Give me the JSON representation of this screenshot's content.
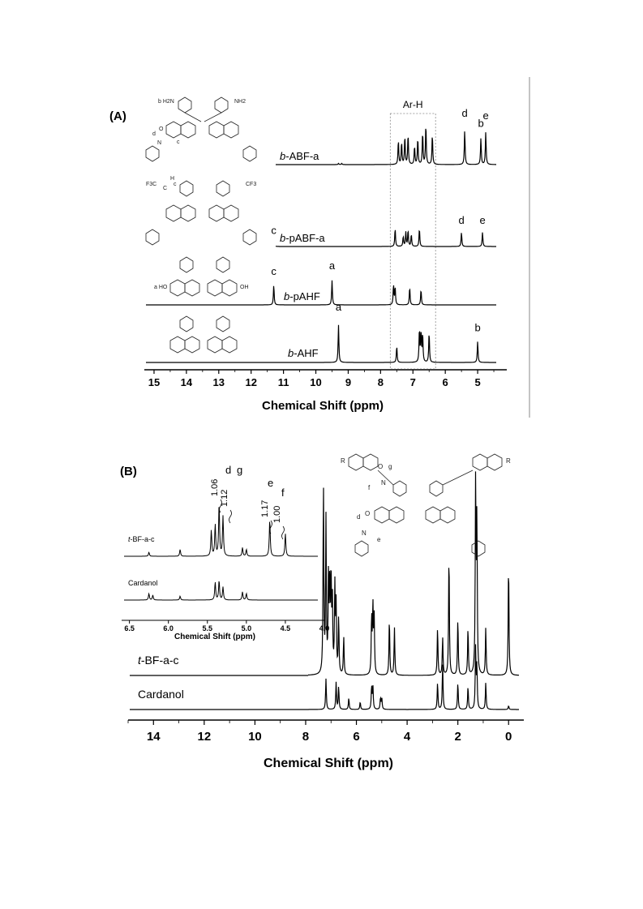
{
  "chart_data": [
    {
      "type": "line",
      "panel_label": "(A)",
      "xlabel": "Chemical Shift (ppm)",
      "x_ticks": [
        "15",
        "14",
        "13",
        "12",
        "11",
        "10",
        "9",
        "8",
        "7",
        "6",
        "5"
      ],
      "xlim": [
        15.3,
        4.1
      ],
      "region_label": "Ar-H",
      "region_range": [
        7.7,
        6.3
      ],
      "series": [
        {
          "name": "b-ABF-a",
          "name_prefix": "b",
          "name_suffix": "-ABF-a",
          "peaks": [
            [
              9.3,
              0.03
            ],
            [
              9.2,
              0.03
            ],
            [
              7.45,
              0.6
            ],
            [
              7.35,
              0.55
            ],
            [
              7.25,
              0.7
            ],
            [
              7.15,
              0.75
            ],
            [
              6.95,
              0.45
            ],
            [
              6.85,
              0.65
            ],
            [
              6.7,
              0.8
            ],
            [
              6.6,
              1.0
            ],
            [
              6.4,
              0.75
            ],
            [
              5.4,
              0.85
            ],
            [
              4.9,
              0.65
            ],
            [
              4.75,
              0.8
            ]
          ],
          "peak_labels": [
            {
              "x": 5.4,
              "text": "d"
            },
            {
              "x": 4.9,
              "text": "b"
            },
            {
              "x": 4.75,
              "text": "e"
            }
          ]
        },
        {
          "name": "b-pABF-a",
          "name_prefix": "b",
          "name_suffix": "-pABF-a",
          "peaks": [
            [
              11.3,
              0.15
            ],
            [
              7.55,
              0.45
            ],
            [
              7.3,
              0.25
            ],
            [
              7.22,
              0.35
            ],
            [
              7.15,
              0.4
            ],
            [
              7.05,
              0.3
            ],
            [
              6.8,
              0.45
            ],
            [
              5.5,
              0.35
            ],
            [
              4.85,
              0.35
            ]
          ],
          "peak_labels": [
            {
              "x": 11.3,
              "text": "c"
            },
            {
              "x": 5.5,
              "text": "d"
            },
            {
              "x": 4.85,
              "text": "e"
            }
          ]
        },
        {
          "name": "b-pAHF",
          "name_prefix": "b",
          "name_suffix": "-pAHF",
          "peaks": [
            [
              11.3,
              0.45
            ],
            [
              9.5,
              0.55
            ],
            [
              7.6,
              0.45
            ],
            [
              7.55,
              0.4
            ],
            [
              7.1,
              0.4
            ],
            [
              6.75,
              0.35
            ]
          ],
          "peak_labels": [
            {
              "x": 11.3,
              "text": "c"
            },
            {
              "x": 9.5,
              "text": "a"
            }
          ]
        },
        {
          "name": "b-AHF",
          "name_prefix": "b",
          "name_suffix": "-AHF",
          "peaks": [
            [
              9.3,
              0.8
            ],
            [
              7.5,
              0.35
            ],
            [
              6.8,
              0.7
            ],
            [
              6.75,
              0.65
            ],
            [
              6.7,
              0.6
            ],
            [
              6.5,
              0.65
            ],
            [
              5.0,
              0.45
            ]
          ],
          "peak_labels": [
            {
              "x": 9.3,
              "text": "a"
            },
            {
              "x": 5.0,
              "text": "b"
            }
          ]
        }
      ],
      "structure_labels": [
        {
          "text": "b H2N"
        },
        {
          "text": "NH2"
        },
        {
          "text": "O"
        },
        {
          "text": "d"
        },
        {
          "text": "N"
        },
        {
          "text": "c"
        },
        {
          "text": "F3C"
        },
        {
          "text": "C"
        },
        {
          "text": "H"
        },
        {
          "text": "c"
        },
        {
          "text": "CF3"
        },
        {
          "text": "a HO"
        },
        {
          "text": "OH"
        }
      ]
    },
    {
      "type": "line",
      "panel_label": "(B)",
      "xlabel": "Chemical Shift (ppm)",
      "x_ticks": [
        "14",
        "12",
        "10",
        "8",
        "6",
        "4",
        "2",
        "0"
      ],
      "xlim": [
        15.0,
        -0.6
      ],
      "series": [
        {
          "name": "t-BF-a-c",
          "name_prefix": "t",
          "name_suffix": "-BF-a-c",
          "peaks": [
            [
              7.3,
              1.0
            ],
            [
              7.2,
              0.8
            ],
            [
              7.1,
              0.5
            ],
            [
              7.05,
              0.45
            ],
            [
              7.0,
              0.5
            ],
            [
              6.95,
              0.4
            ],
            [
              6.85,
              0.45
            ],
            [
              6.8,
              0.35
            ],
            [
              6.7,
              0.3
            ],
            [
              6.5,
              0.2
            ],
            [
              5.4,
              0.3
            ],
            [
              5.35,
              0.35
            ],
            [
              5.3,
              0.3
            ],
            [
              4.7,
              0.3
            ],
            [
              4.5,
              0.25
            ],
            [
              2.8,
              0.25
            ],
            [
              2.6,
              0.2
            ],
            [
              2.35,
              0.65
            ],
            [
              2.0,
              0.3
            ],
            [
              1.6,
              0.25
            ],
            [
              1.3,
              1.0
            ],
            [
              1.25,
              0.8
            ],
            [
              0.9,
              0.25
            ],
            [
              0.0,
              0.6
            ]
          ]
        },
        {
          "name": "Cardanol",
          "name_prefix": "",
          "name_suffix": "Cardanol",
          "peaks": [
            [
              7.2,
              0.4
            ],
            [
              6.8,
              0.35
            ],
            [
              6.7,
              0.3
            ],
            [
              6.3,
              0.15
            ],
            [
              5.85,
              0.1
            ],
            [
              5.4,
              0.3
            ],
            [
              5.35,
              0.3
            ],
            [
              5.05,
              0.15
            ],
            [
              5.0,
              0.15
            ],
            [
              2.8,
              0.35
            ],
            [
              2.6,
              0.6
            ],
            [
              2.0,
              0.35
            ],
            [
              1.6,
              0.3
            ],
            [
              1.3,
              0.8
            ],
            [
              1.25,
              0.55
            ],
            [
              0.9,
              0.35
            ],
            [
              0.0,
              0.05
            ]
          ]
        }
      ],
      "inset": {
        "xlabel": "Chemical Shift (ppm)",
        "x_ticks": [
          "6.5",
          "6.0",
          "5.5",
          "5.0",
          "4.5",
          "4.0"
        ],
        "xlim": [
          6.6,
          4.0
        ],
        "series": [
          {
            "name": "t-BF-a-c",
            "name_prefix": "t",
            "name_suffix": "-BF-a-c",
            "peaks": [
              [
                6.25,
                0.07
              ],
              [
                5.85,
                0.12
              ],
              [
                5.45,
                0.45
              ],
              [
                5.4,
                0.55
              ],
              [
                5.35,
                0.9
              ],
              [
                5.3,
                0.7
              ],
              [
                5.05,
                0.15
              ],
              [
                5.0,
                0.12
              ],
              [
                4.7,
                0.65
              ],
              [
                4.5,
                0.4
              ]
            ]
          },
          {
            "name": "Cardanol",
            "name_prefix": "",
            "name_suffix": "Cardanol",
            "peaks": [
              [
                6.25,
                0.2
              ],
              [
                6.2,
                0.15
              ],
              [
                5.85,
                0.12
              ],
              [
                5.4,
                0.55
              ],
              [
                5.35,
                0.6
              ],
              [
                5.3,
                0.4
              ],
              [
                5.05,
                0.25
              ],
              [
                5.0,
                0.2
              ]
            ]
          }
        ],
        "integrals": [
          {
            "value": "1.06",
            "letter": "d"
          },
          {
            "value": "1.12",
            "letter": "g"
          },
          {
            "value": "1.17",
            "letter": "e"
          },
          {
            "value": "1.00",
            "letter": "f"
          }
        ]
      },
      "structure_labels": [
        {
          "text": "R"
        },
        {
          "text": "O"
        },
        {
          "text": "g"
        },
        {
          "text": "N"
        },
        {
          "text": "f"
        },
        {
          "text": "R"
        },
        {
          "text": "d"
        },
        {
          "text": "O"
        },
        {
          "text": "N"
        },
        {
          "text": "e"
        }
      ]
    }
  ]
}
